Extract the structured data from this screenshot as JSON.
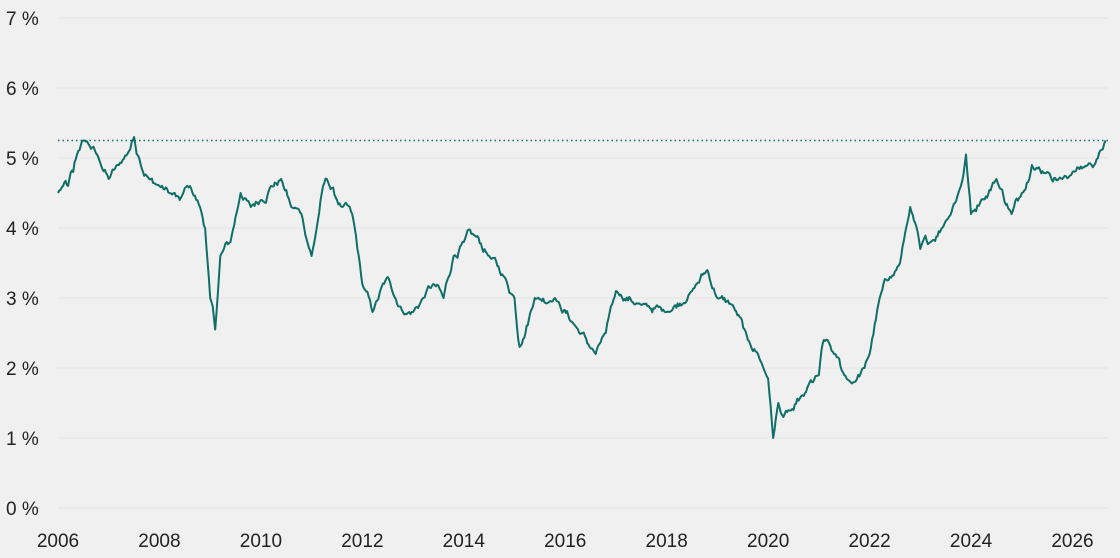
{
  "chart_data": {
    "type": "line",
    "title": "",
    "xlabel": "",
    "ylabel": "",
    "xlim": [
      2006,
      2026.7
    ],
    "ylim": [
      0,
      7
    ],
    "grid": true,
    "y_ticks": [
      0,
      1,
      2,
      3,
      4,
      5,
      6,
      7
    ],
    "y_tick_labels": [
      "0 %",
      "1 %",
      "2 %",
      "3 %",
      "4 %",
      "5 %",
      "6 %",
      "7 %"
    ],
    "x_ticks": [
      2006,
      2008,
      2010,
      2012,
      2014,
      2016,
      2018,
      2020,
      2022,
      2024,
      2026
    ],
    "x_tick_labels": [
      "2006",
      "2008",
      "2010",
      "2012",
      "2014",
      "2016",
      "2018",
      "2020",
      "2022",
      "2024",
      "2026"
    ],
    "reference_line": {
      "y": 5.25,
      "style": "dotted"
    },
    "colors": {
      "line": "#0f6e66",
      "reference": "#0f6e66",
      "grid": "#e3e3e3",
      "background": "#f0f0f0"
    },
    "series": [
      {
        "x": [
          2006.0,
          2006.1,
          2006.2,
          2006.3,
          2006.4,
          2006.5,
          2006.6,
          2006.8,
          2007.0,
          2007.2,
          2007.4,
          2007.5,
          2007.6,
          2007.8,
          2008.0,
          2008.2,
          2008.4,
          2008.6,
          2008.8,
          2008.9,
          2009.0,
          2009.1,
          2009.2,
          2009.4,
          2009.6,
          2009.8,
          2010.0,
          2010.2,
          2010.4,
          2010.6,
          2010.8,
          2011.0,
          2011.1,
          2011.2,
          2011.3,
          2011.5,
          2011.6,
          2011.8,
          2012.0,
          2012.2,
          2012.5,
          2012.8,
          2013.0,
          2013.2,
          2013.4,
          2013.6,
          2013.8,
          2014.0,
          2014.2,
          2014.5,
          2014.8,
          2015.0,
          2015.1,
          2015.4,
          2015.8,
          2016.2,
          2016.6,
          2016.8,
          2017.0,
          2017.5,
          2018.0,
          2018.5,
          2018.8,
          2019.0,
          2019.3,
          2019.6,
          2019.8,
          2020.0,
          2020.1,
          2020.2,
          2020.3,
          2020.5,
          2020.7,
          2021.0,
          2021.1,
          2021.3,
          2021.5,
          2021.7,
          2021.9,
          2022.0,
          2022.2,
          2022.4,
          2022.6,
          2022.8,
          2023.0,
          2023.2,
          2023.5,
          2023.8,
          2023.9,
          2024.0,
          2024.2,
          2024.5,
          2024.8,
          2025.0,
          2025.2,
          2025.5,
          2025.8,
          2026.0,
          2026.3,
          2026.5,
          2026.65
        ],
        "values": [
          4.5,
          4.6,
          4.6,
          4.8,
          5.1,
          5.25,
          5.2,
          5.0,
          4.7,
          4.9,
          5.1,
          5.3,
          5.0,
          4.7,
          4.6,
          4.5,
          4.4,
          4.6,
          4.3,
          4.0,
          3.0,
          2.55,
          3.6,
          3.8,
          4.5,
          4.3,
          4.4,
          4.6,
          4.7,
          4.3,
          4.2,
          3.6,
          4.0,
          4.5,
          4.7,
          4.4,
          4.3,
          4.2,
          3.2,
          2.8,
          3.3,
          2.8,
          2.8,
          3.0,
          3.2,
          3.0,
          3.6,
          3.8,
          3.9,
          3.6,
          3.3,
          3.0,
          2.3,
          3.0,
          3.0,
          2.6,
          2.2,
          2.5,
          3.1,
          2.9,
          2.8,
          3.1,
          3.4,
          3.0,
          2.9,
          2.4,
          2.2,
          1.85,
          1.0,
          1.5,
          1.3,
          1.4,
          1.6,
          1.9,
          2.4,
          2.2,
          1.9,
          1.8,
          2.0,
          2.2,
          3.0,
          3.3,
          3.5,
          4.3,
          3.7,
          3.8,
          4.1,
          4.6,
          5.05,
          4.2,
          4.4,
          4.7,
          4.2,
          4.5,
          4.9,
          4.8,
          4.7,
          4.8,
          4.9,
          5.0,
          5.25
        ]
      }
    ]
  }
}
